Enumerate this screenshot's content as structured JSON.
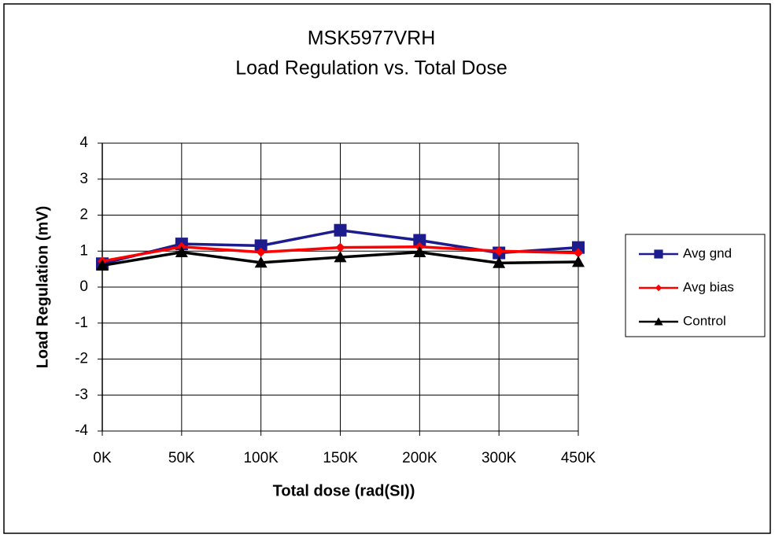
{
  "chart_data": {
    "type": "line",
    "title": [
      "MSK5977VRH",
      "Load Regulation vs. Total Dose"
    ],
    "x_label": "Total dose (rad(SI))",
    "y_label": "Load Regulation (mV)",
    "categories": [
      "0K",
      "50K",
      "100K",
      "150K",
      "200K",
      "300K",
      "450K"
    ],
    "series": [
      {
        "name": "Avg gnd",
        "color": "#1c1c8e",
        "marker": "square",
        "values": [
          0.65,
          1.2,
          1.15,
          1.58,
          1.3,
          0.95,
          1.1
        ]
      },
      {
        "name": "Avg bias",
        "color": "#ff0000",
        "marker": "diamond",
        "values": [
          0.72,
          1.12,
          0.97,
          1.1,
          1.12,
          1.0,
          0.95
        ]
      },
      {
        "name": "Control",
        "color": "#000000",
        "marker": "triangle",
        "values": [
          0.6,
          0.97,
          0.68,
          0.83,
          0.97,
          0.67,
          0.7
        ]
      }
    ],
    "ylim": [
      -4,
      4
    ],
    "yticks": [
      -4,
      -3,
      -2,
      -1,
      0,
      1,
      2,
      3,
      4
    ],
    "grid": true,
    "legend": "right"
  }
}
